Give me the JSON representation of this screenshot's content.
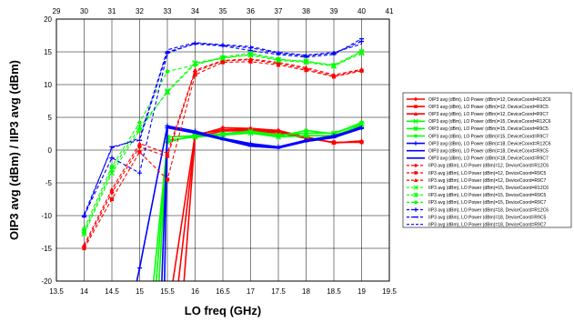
{
  "chart_data": {
    "type": "line",
    "xlabel": "LO freq (GHz)",
    "ylabel": "OIP3 avg (dBm) / IIP3 avg (dBm)",
    "xlim": [
      13.5,
      19.5
    ],
    "ylim": [
      -20,
      20
    ],
    "x2lim": [
      29,
      41
    ],
    "x_ticks": [
      "13.5",
      "14",
      "14.5",
      "15",
      "15.5",
      "16",
      "16.5",
      "17",
      "17.5",
      "18",
      "18.5",
      "19",
      "19.5"
    ],
    "y_ticks": [
      "-20",
      "-15",
      "-10",
      "-5",
      "0",
      "5",
      "10",
      "15",
      "20"
    ],
    "x2_ticks": [
      "29",
      "30",
      "31",
      "32",
      "33",
      "34",
      "35",
      "36",
      "37",
      "38",
      "39",
      "40",
      "41"
    ],
    "grid": true,
    "legend_position": "right",
    "colors": {
      "red": "#ff0000",
      "green": "#00ff00",
      "blue": "#0000ff"
    },
    "series": [
      {
        "name": "OIP3 avg (dBm), LO Power (dBm)=12, DeviceCoord=R12C6",
        "color": "#ff0000",
        "dash": false,
        "marker": "diamond",
        "x": [
          15.8,
          16,
          16.5,
          17,
          17.5,
          18,
          18.5,
          19
        ],
        "y": [
          -20,
          2.2,
          3.4,
          3.3,
          3.0,
          2.0,
          1.1,
          1.3
        ]
      },
      {
        "name": "OIP3 avg (dBm), LO Power (dBm)=12, DeviceCoord=R9C5",
        "color": "#ff0000",
        "dash": false,
        "marker": "square",
        "x": [
          15.7,
          16,
          16.5,
          17,
          17.5,
          18,
          18.5,
          19
        ],
        "y": [
          -20,
          2.0,
          2.9,
          3.0,
          2.6,
          1.8,
          1.2,
          1.2
        ]
      },
      {
        "name": "OIP3 avg (dBm), LO Power (dBm)=12, DeviceCoord=R9C7",
        "color": "#ff0000",
        "dash": false,
        "marker": "triangle",
        "x": [
          15.6,
          16,
          16.5,
          17,
          17.5,
          18,
          18.5,
          19
        ],
        "y": [
          -20,
          2.4,
          3.1,
          3.2,
          2.8,
          2.0,
          1.1,
          1.4
        ]
      },
      {
        "name": "OIP3 avg (dBm), LO Power (dBm)=15, DeviceCoord=R12C6",
        "color": "#00ff00",
        "dash": false,
        "marker": "x",
        "x": [
          15.35,
          15.5,
          16,
          16.5,
          17,
          17.5,
          18,
          18.5,
          19
        ],
        "y": [
          -20,
          2.0,
          2.2,
          2.5,
          2.9,
          2.3,
          2.6,
          2.6,
          4.0
        ]
      },
      {
        "name": "OIP3 avg (dBm), LO Power (dBm)=15, DeviceCoord=R9C5",
        "color": "#00ff00",
        "dash": false,
        "marker": "asterisk",
        "x": [
          15.3,
          15.5,
          16,
          16.5,
          17,
          17.5,
          18,
          18.5,
          19
        ],
        "y": [
          -20,
          1.5,
          2.0,
          2.3,
          2.6,
          2.0,
          2.2,
          2.2,
          3.8
        ]
      },
      {
        "name": "OIP3 avg (dBm), LO Power (dBm)=15, DeviceCoord=R9C7",
        "color": "#00ff00",
        "dash": false,
        "marker": "circle",
        "x": [
          15.25,
          15.5,
          16,
          16.5,
          17,
          17.5,
          18,
          18.5,
          19
        ],
        "y": [
          -20,
          1.2,
          2.3,
          2.4,
          2.7,
          2.1,
          3.0,
          2.5,
          4.2
        ]
      },
      {
        "name": "OIP3 avg (dBm), LO Power (dBm)=18, DeviceCoord=R12C6",
        "color": "#0000ff",
        "dash": false,
        "marker": "plus",
        "x": [
          14.95,
          15,
          15.5,
          16,
          16.5,
          17,
          17.5,
          18,
          18.5,
          19
        ],
        "y": [
          -20,
          -18.0,
          3.7,
          2.9,
          1.8,
          1.0,
          0.5,
          1.5,
          2.2,
          3.4
        ]
      },
      {
        "name": "OIP3 avg (dBm), LO Power (dBm)=18, DeviceCoord=R9C5",
        "color": "#0000ff",
        "dash": false,
        "marker": "dash",
        "x": [
          15.4,
          15.5,
          16,
          16.5,
          17,
          17.5,
          18,
          18.5,
          19
        ],
        "y": [
          -20,
          3.4,
          2.6,
          1.6,
          0.6,
          0.3,
          1.3,
          1.9,
          3.3
        ]
      },
      {
        "name": "OIP3 avg (dBm), LO Power (dBm)=18, DeviceCoord=R9C7",
        "color": "#0000ff",
        "dash": false,
        "marker": "line",
        "x": [
          15.45,
          15.5,
          16,
          16.5,
          17,
          17.5,
          18,
          18.5,
          19
        ],
        "y": [
          -20,
          3.5,
          2.7,
          1.7,
          0.8,
          0.4,
          1.5,
          2.0,
          3.6
        ]
      },
      {
        "name": "IIP3 avg (dBm), LO Power (dBm)=12, DeviceCoord=R12C6",
        "color": "#ff0000",
        "dash": true,
        "marker": "diamond",
        "x": [
          14,
          14.5,
          15,
          15.5,
          16,
          16.5,
          17,
          17.5,
          18,
          18.5,
          19
        ],
        "y": [
          -14.8,
          -6.5,
          0.5,
          -1.0,
          12.0,
          13.6,
          13.8,
          13.2,
          12.4,
          11.3,
          12.2
        ]
      },
      {
        "name": "IIP3 avg (dBm), LO Power (dBm)=12, DeviceCoord=R9C5",
        "color": "#ff0000",
        "dash": true,
        "marker": "square",
        "x": [
          14,
          14.5,
          15,
          15.5,
          16,
          16.5,
          17,
          17.5,
          18,
          18.5,
          19
        ],
        "y": [
          -15.0,
          -7.5,
          -0.3,
          -4.5,
          11.5,
          13.4,
          13.5,
          13.0,
          12.2,
          11.2,
          12.1
        ]
      },
      {
        "name": "IIP3 avg (dBm), LO Power (dBm)=12, DeviceCoord=R9C7",
        "color": "#ff0000",
        "dash": true,
        "marker": "triangle",
        "x": [
          14,
          14.5,
          15,
          15.5,
          16,
          16.5,
          17,
          17.5,
          18,
          18.5,
          19
        ],
        "y": [
          -14.5,
          -6.0,
          1.0,
          -0.5,
          12.2,
          13.7,
          13.9,
          13.4,
          12.6,
          11.5,
          12.3
        ]
      },
      {
        "name": "IIP3 avg (dBm), LO Power (dBm)=15, DeviceCoord=R12C6",
        "color": "#00ff00",
        "dash": true,
        "marker": "x",
        "x": [
          14,
          14.5,
          15,
          15.5,
          16,
          16.5,
          17,
          17.5,
          18,
          18.5,
          19
        ],
        "y": [
          -12.5,
          -3.0,
          3.5,
          8.8,
          13.2,
          14.0,
          14.6,
          13.8,
          13.6,
          12.9,
          15.0
        ]
      },
      {
        "name": "IIP3 avg (dBm), LO Power (dBm)=15, DeviceCoord=R9C5",
        "color": "#00ff00",
        "dash": true,
        "marker": "asterisk",
        "x": [
          14,
          14.5,
          15,
          15.5,
          16,
          16.5,
          17,
          17.5,
          18,
          18.5,
          19
        ],
        "y": [
          -12.8,
          -3.5,
          3.0,
          9.0,
          13.3,
          14.1,
          14.5,
          13.7,
          13.4,
          12.8,
          14.8
        ]
      },
      {
        "name": "IIP3 avg (dBm), LO Power (dBm)=15, DeviceCoord=R9C7",
        "color": "#00ff00",
        "dash": true,
        "marker": "circle",
        "x": [
          14,
          14.5,
          15,
          15.5,
          16,
          16.5,
          17,
          17.5,
          18,
          18.5,
          19
        ],
        "y": [
          -12.0,
          -2.5,
          4.2,
          12.0,
          13.0,
          14.2,
          14.8,
          13.9,
          13.5,
          13.0,
          15.1
        ]
      },
      {
        "name": "IIP3 avg (dBm), LO Power (dBm)=18, DeviceCoord=R12C6",
        "color": "#0000ff",
        "dash": true,
        "marker": "plus",
        "x": [
          14,
          14.5,
          15,
          15.5,
          16,
          16.5,
          17,
          17.5,
          18,
          18.5,
          19
        ],
        "y": [
          -10.0,
          -1.2,
          -3.5,
          14.8,
          16.3,
          16.0,
          15.6,
          14.8,
          14.4,
          14.8,
          16.6
        ]
      },
      {
        "name": "IIP3 avg (dBm), LO Power (dBm)=18, DeviceCoord=R9C5",
        "color": "#0000ff",
        "dash": true,
        "marker": "dash",
        "x": [
          14,
          14.5,
          15,
          15.5,
          16,
          16.5,
          17,
          17.5,
          18,
          18.5,
          19
        ],
        "y": [
          -10.2,
          0.5,
          1.5,
          15.0,
          16.2,
          15.9,
          15.2,
          14.6,
          14.2,
          14.6,
          17.0
        ]
      },
      {
        "name": "IIP3 avg (dBm), LO Power (dBm)=18, DeviceCoord=R9C7",
        "color": "#0000ff",
        "dash": true,
        "marker": "line",
        "x": [
          14,
          14.5,
          15,
          15.5,
          16,
          16.5,
          17,
          17.5,
          18,
          18.5,
          19
        ],
        "y": [
          -9.8,
          0.3,
          1.8,
          15.3,
          16.4,
          16.1,
          15.8,
          14.9,
          14.5,
          14.9,
          16.2
        ]
      }
    ]
  }
}
